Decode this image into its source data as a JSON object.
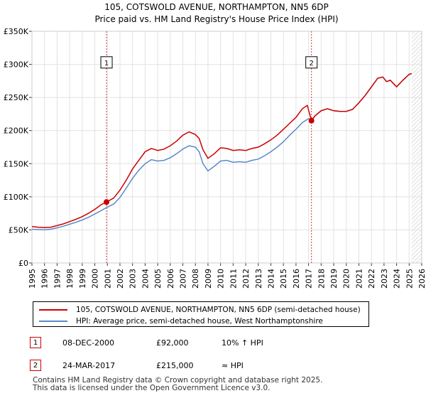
{
  "chart_data": {
    "type": "line",
    "title": "105, COTSWOLD AVENUE, NORTHAMPTON, NN5 6DP",
    "subtitle": "Price paid vs. HM Land Registry's House Price Index (HPI)",
    "xlim": [
      1995,
      2026
    ],
    "ylim": [
      0,
      350000
    ],
    "x_ticks": [
      "1995",
      "1996",
      "1997",
      "1998",
      "1999",
      "2000",
      "2001",
      "2002",
      "2003",
      "2004",
      "2005",
      "2006",
      "2007",
      "2008",
      "2009",
      "2010",
      "2011",
      "2012",
      "2013",
      "2014",
      "2015",
      "2016",
      "2017",
      "2018",
      "2019",
      "2020",
      "2021",
      "2022",
      "2023",
      "2024",
      "2025",
      "2026"
    ],
    "y_ticks": [
      {
        "value": 0,
        "label": "£0"
      },
      {
        "value": 50000,
        "label": "£50K"
      },
      {
        "value": 100000,
        "label": "£100K"
      },
      {
        "value": 150000,
        "label": "£150K"
      },
      {
        "value": 200000,
        "label": "£200K"
      },
      {
        "value": 250000,
        "label": "£250K"
      },
      {
        "value": 300000,
        "label": "£300K"
      },
      {
        "value": 350000,
        "label": "£350K"
      }
    ],
    "grid": true,
    "projection_start": 2025.2,
    "series": [
      {
        "name": "105, COTSWOLD AVENUE, NORTHAMPTON, NN5 6DP (semi-detached house)",
        "color": "#cc0000",
        "points": [
          [
            1995,
            55000
          ],
          [
            1995.5,
            54000
          ],
          [
            1996,
            53500
          ],
          [
            1996.5,
            54000
          ],
          [
            1997,
            56500
          ],
          [
            1997.5,
            59000
          ],
          [
            1998,
            62500
          ],
          [
            1998.5,
            66000
          ],
          [
            1999,
            70000
          ],
          [
            1999.5,
            75000
          ],
          [
            2000,
            81000
          ],
          [
            2000.5,
            88000
          ],
          [
            2000.93,
            92000
          ],
          [
            2001.5,
            98000
          ],
          [
            2002,
            110000
          ],
          [
            2002.5,
            125000
          ],
          [
            2003,
            142000
          ],
          [
            2003.5,
            155000
          ],
          [
            2004,
            168000
          ],
          [
            2004.5,
            173000
          ],
          [
            2005,
            170000
          ],
          [
            2005.5,
            172000
          ],
          [
            2006,
            177000
          ],
          [
            2006.5,
            184000
          ],
          [
            2007,
            193000
          ],
          [
            2007.5,
            198000
          ],
          [
            2008,
            194000
          ],
          [
            2008.3,
            188000
          ],
          [
            2008.6,
            171000
          ],
          [
            2009,
            158000
          ],
          [
            2009.5,
            165000
          ],
          [
            2010,
            174000
          ],
          [
            2010.5,
            173000
          ],
          [
            2011,
            170000
          ],
          [
            2011.5,
            171000
          ],
          [
            2012,
            170000
          ],
          [
            2012.5,
            173000
          ],
          [
            2013,
            175000
          ],
          [
            2013.5,
            180000
          ],
          [
            2014,
            186000
          ],
          [
            2014.5,
            193000
          ],
          [
            2015,
            202000
          ],
          [
            2015.5,
            211000
          ],
          [
            2016,
            220000
          ],
          [
            2016.5,
            233000
          ],
          [
            2016.9,
            238000
          ],
          [
            2017.23,
            215000
          ],
          [
            2017.5,
            222000
          ],
          [
            2018,
            230000
          ],
          [
            2018.5,
            233000
          ],
          [
            2019,
            230000
          ],
          [
            2019.5,
            229000
          ],
          [
            2020,
            229000
          ],
          [
            2020.5,
            232000
          ],
          [
            2021,
            242000
          ],
          [
            2021.5,
            253000
          ],
          [
            2022,
            266000
          ],
          [
            2022.5,
            279000
          ],
          [
            2022.9,
            281000
          ],
          [
            2023.2,
            274000
          ],
          [
            2023.5,
            276000
          ],
          [
            2024,
            266000
          ],
          [
            2024.5,
            276000
          ],
          [
            2025,
            285000
          ],
          [
            2025.2,
            286000
          ]
        ]
      },
      {
        "name": "HPI: Average price, semi-detached house, West Northamptonshire",
        "color": "#5a8ac6",
        "points": [
          [
            1995,
            51000
          ],
          [
            1995.5,
            50500
          ],
          [
            1996,
            50000
          ],
          [
            1996.5,
            51000
          ],
          [
            1997,
            53000
          ],
          [
            1997.5,
            55500
          ],
          [
            1998,
            58500
          ],
          [
            1998.5,
            61500
          ],
          [
            1999,
            65000
          ],
          [
            1999.5,
            69000
          ],
          [
            2000,
            74000
          ],
          [
            2000.5,
            79000
          ],
          [
            2000.93,
            83600
          ],
          [
            2001.5,
            89000
          ],
          [
            2002,
            99000
          ],
          [
            2002.5,
            113000
          ],
          [
            2003,
            128000
          ],
          [
            2003.5,
            140000
          ],
          [
            2004,
            150000
          ],
          [
            2004.5,
            156000
          ],
          [
            2005,
            154000
          ],
          [
            2005.5,
            155000
          ],
          [
            2006,
            159000
          ],
          [
            2006.5,
            165000
          ],
          [
            2007,
            172000
          ],
          [
            2007.5,
            177000
          ],
          [
            2008,
            175000
          ],
          [
            2008.3,
            168000
          ],
          [
            2008.6,
            150000
          ],
          [
            2009,
            139000
          ],
          [
            2009.5,
            146000
          ],
          [
            2010,
            154000
          ],
          [
            2010.5,
            155000
          ],
          [
            2011,
            152000
          ],
          [
            2011.5,
            153000
          ],
          [
            2012,
            152000
          ],
          [
            2012.5,
            155000
          ],
          [
            2013,
            157000
          ],
          [
            2013.5,
            162000
          ],
          [
            2014,
            168000
          ],
          [
            2014.5,
            175000
          ],
          [
            2015,
            183000
          ],
          [
            2015.5,
            193000
          ],
          [
            2016,
            202000
          ],
          [
            2016.5,
            212000
          ],
          [
            2017,
            218000
          ],
          [
            2017.23,
            215000
          ],
          [
            2017.5,
            222000
          ],
          [
            2018,
            230000
          ],
          [
            2018.5,
            233000
          ],
          [
            2019,
            230000
          ],
          [
            2019.5,
            229000
          ],
          [
            2020,
            229000
          ],
          [
            2020.5,
            232000
          ],
          [
            2021,
            242000
          ],
          [
            2021.5,
            253000
          ],
          [
            2022,
            266000
          ],
          [
            2022.5,
            279000
          ],
          [
            2022.9,
            281000
          ],
          [
            2023.2,
            274000
          ],
          [
            2023.5,
            276000
          ],
          [
            2024,
            266000
          ],
          [
            2024.5,
            276000
          ],
          [
            2025,
            285000
          ],
          [
            2025.2,
            286000
          ]
        ]
      }
    ],
    "annotations": [
      {
        "label": "1",
        "x": 2000.93,
        "y": 92000,
        "box_y": 303000
      },
      {
        "label": "2",
        "x": 2017.23,
        "y": 215000,
        "box_y": 303000
      }
    ]
  },
  "sales": [
    {
      "num": "1",
      "date": "08-DEC-2000",
      "price": "£92,000",
      "hpi": "10% ↑ HPI"
    },
    {
      "num": "2",
      "date": "24-MAR-2017",
      "price": "£215,000",
      "hpi": "≈ HPI"
    }
  ],
  "footer": {
    "line1": "Contains HM Land Registry data © Crown copyright and database right 2025.",
    "line2": "This data is licensed under the Open Government Licence v3.0."
  }
}
